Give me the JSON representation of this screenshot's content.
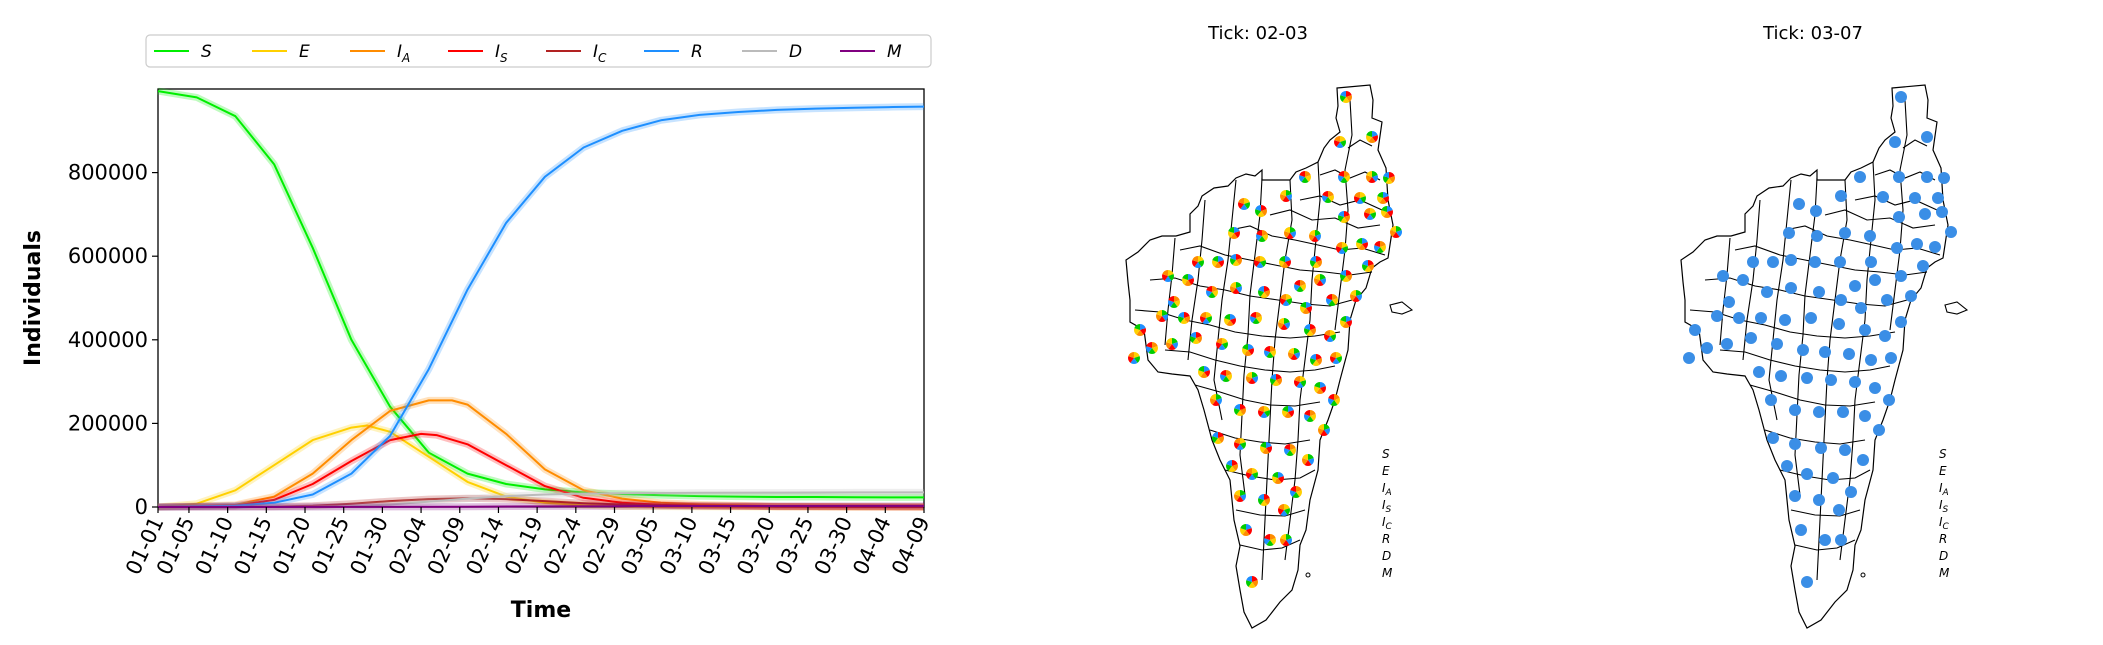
{
  "chart_data": [
    {
      "type": "line",
      "title": "",
      "xlabel": "Time",
      "ylabel": "Individuals",
      "xlim": [
        0,
        99
      ],
      "ylim": [
        0,
        1000000
      ],
      "x_ticks": [
        "01-01",
        "01-05",
        "01-10",
        "01-15",
        "01-20",
        "01-25",
        "01-30",
        "02-04",
        "02-09",
        "02-14",
        "02-19",
        "02-24",
        "02-29",
        "03-05",
        "03-10",
        "03-15",
        "03-20",
        "03-25",
        "03-30",
        "04-04",
        "04-09"
      ],
      "x_tick_days": [
        0,
        4,
        9,
        14,
        19,
        24,
        29,
        34,
        39,
        44,
        49,
        54,
        59,
        64,
        69,
        74,
        79,
        84,
        89,
        94,
        99
      ],
      "y_ticks": [
        {
          "value": 0,
          "label": "0"
        },
        {
          "value": 200000,
          "label": "200000"
        },
        {
          "value": 400000,
          "label": "400000"
        },
        {
          "value": 600000,
          "label": "600000"
        },
        {
          "value": 800000,
          "label": "800000"
        }
      ],
      "legend": {
        "placement": "top",
        "entries": [
          {
            "symbol": "S",
            "sub": "",
            "color": "#00ee00"
          },
          {
            "symbol": "E",
            "sub": "",
            "color": "#ffd000"
          },
          {
            "symbol": "I",
            "sub": "A",
            "color": "#ff8c00"
          },
          {
            "symbol": "I",
            "sub": "S",
            "color": "#ff0000"
          },
          {
            "symbol": "I",
            "sub": "C",
            "color": "#b22222"
          },
          {
            "symbol": "R",
            "sub": "",
            "color": "#1e8fff"
          },
          {
            "symbol": "D",
            "sub": "",
            "color": "#bbbbbb"
          },
          {
            "symbol": "M",
            "sub": "",
            "color": "#800080"
          }
        ]
      },
      "series": [
        {
          "name": "S",
          "color": "#00ee00",
          "x": [
            0,
            5,
            10,
            15,
            20,
            25,
            30,
            35,
            40,
            45,
            50,
            55,
            60,
            65,
            70,
            75,
            80,
            85,
            90,
            95,
            99
          ],
          "y": [
            995000,
            980000,
            935000,
            820000,
            620000,
            400000,
            240000,
            130000,
            80000,
            55000,
            42000,
            35000,
            31000,
            28000,
            26000,
            25000,
            24000,
            24000,
            23500,
            23000,
            23000
          ]
        },
        {
          "name": "E",
          "color": "#ffd000",
          "x": [
            0,
            5,
            10,
            15,
            20,
            25,
            27,
            30,
            35,
            40,
            45,
            50,
            55,
            60,
            70,
            80,
            90,
            99
          ],
          "y": [
            0,
            8000,
            40000,
            100000,
            160000,
            190000,
            195000,
            180000,
            120000,
            60000,
            25000,
            10000,
            4000,
            1500,
            500,
            200,
            100,
            0
          ]
        },
        {
          "name": "IA",
          "color": "#ff8c00",
          "x": [
            0,
            10,
            15,
            20,
            25,
            30,
            35,
            38,
            40,
            45,
            50,
            55,
            60,
            65,
            70,
            80,
            90,
            99
          ],
          "y": [
            0,
            5000,
            25000,
            80000,
            160000,
            230000,
            255000,
            255000,
            245000,
            175000,
            90000,
            40000,
            20000,
            10000,
            6000,
            2000,
            800,
            300
          ]
        },
        {
          "name": "IS",
          "color": "#ff0000",
          "x": [
            0,
            10,
            15,
            20,
            25,
            30,
            34,
            36,
            40,
            45,
            50,
            55,
            60,
            65,
            70,
            80,
            90,
            99
          ],
          "y": [
            0,
            3000,
            17000,
            55000,
            110000,
            160000,
            175000,
            172000,
            150000,
            100000,
            50000,
            22000,
            10000,
            5000,
            3000,
            1000,
            400,
            100
          ]
        },
        {
          "name": "IC",
          "color": "#b22222",
          "x": [
            0,
            15,
            20,
            25,
            30,
            35,
            40,
            45,
            50,
            55,
            60,
            70,
            80,
            90,
            99
          ],
          "y": [
            0,
            1000,
            3000,
            8000,
            14000,
            19000,
            21000,
            19000,
            14000,
            9000,
            6000,
            2500,
            1000,
            400,
            200
          ]
        },
        {
          "name": "R",
          "color": "#1e8fff",
          "x": [
            0,
            10,
            15,
            20,
            25,
            30,
            35,
            40,
            45,
            50,
            55,
            60,
            65,
            70,
            75,
            80,
            85,
            90,
            95,
            99
          ],
          "y": [
            0,
            3000,
            10000,
            30000,
            80000,
            170000,
            330000,
            520000,
            680000,
            790000,
            860000,
            900000,
            925000,
            938000,
            945000,
            950000,
            953000,
            955000,
            957000,
            958000
          ]
        },
        {
          "name": "D",
          "color": "#bbbbbb",
          "x": [
            0,
            20,
            25,
            30,
            35,
            40,
            45,
            50,
            55,
            60,
            70,
            80,
            90,
            99
          ],
          "y": [
            0,
            500,
            2000,
            6000,
            13000,
            20000,
            26000,
            30000,
            32000,
            33000,
            34000,
            34500,
            35000,
            35000
          ]
        },
        {
          "name": "M",
          "color": "#800080",
          "x": [
            0,
            30,
            40,
            50,
            60,
            80,
            99
          ],
          "y": [
            0,
            200,
            800,
            1500,
            2000,
            2500,
            2700
          ]
        }
      ]
    },
    {
      "type": "map",
      "title": "Tick: 02-03",
      "marker_style": "pie",
      "legend_column": [
        {
          "symbol": "S",
          "sub": ""
        },
        {
          "symbol": "E",
          "sub": ""
        },
        {
          "symbol": "I",
          "sub": "A"
        },
        {
          "symbol": "I",
          "sub": "S"
        },
        {
          "symbol": "I",
          "sub": "C"
        },
        {
          "symbol": "R",
          "sub": ""
        },
        {
          "symbol": "D",
          "sub": ""
        },
        {
          "symbol": "M",
          "sub": ""
        }
      ],
      "pie_colors": [
        "#ff0000",
        "#ff8c00",
        "#ffd000",
        "#00cc00",
        "#1e8fff"
      ]
    },
    {
      "type": "map",
      "title": "Tick: 03-07",
      "marker_style": "dot",
      "marker_color": "#3a8ee6",
      "legend_column": [
        {
          "symbol": "S",
          "sub": ""
        },
        {
          "symbol": "E",
          "sub": ""
        },
        {
          "symbol": "I",
          "sub": "A"
        },
        {
          "symbol": "I",
          "sub": "S"
        },
        {
          "symbol": "I",
          "sub": "C"
        },
        {
          "symbol": "R",
          "sub": ""
        },
        {
          "symbol": "D",
          "sub": ""
        },
        {
          "symbol": "M",
          "sub": ""
        }
      ]
    }
  ]
}
